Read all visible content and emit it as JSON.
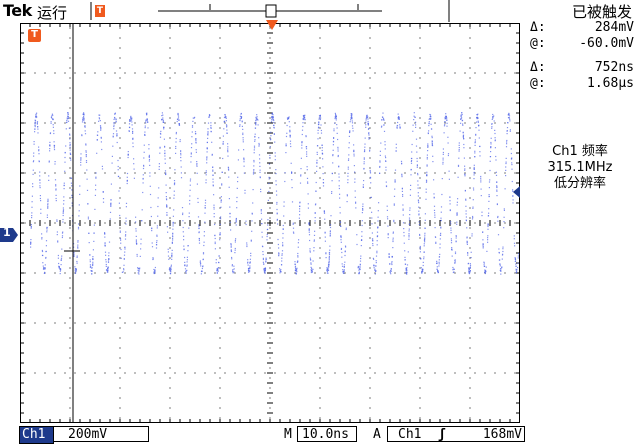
{
  "header": {
    "brand": "Tek",
    "run_state": "运行",
    "trigger_state": "已被触发",
    "trigger_marker": "T"
  },
  "readouts": {
    "cursor_v_delta_label": "Δ:",
    "cursor_v_delta": "284mV",
    "cursor_v_at_label": "@:",
    "cursor_v_at": "-60.0mV",
    "cursor_t_delta_label": "Δ:",
    "cursor_t_delta": "752ns",
    "cursor_t_at_label": "@:",
    "cursor_t_at": "1.68µs"
  },
  "measurement": {
    "line1": "Ch1 频率",
    "line2": "315.1MHz",
    "line3": "低分辨率"
  },
  "footer": {
    "channel": "Ch1",
    "volts_div": "200mV",
    "m_label": "M",
    "time_div": "10.0ns",
    "trigger_mode": "A",
    "trigger_source": "Ch1",
    "trigger_slope": "ʃ",
    "trigger_level": "168mV"
  },
  "channel_marker": "1",
  "colors": {
    "trace": "#5b6ee8",
    "grid": "#000000",
    "marker": "#f05a1e",
    "channel_marker": "#1e3a8c"
  }
}
